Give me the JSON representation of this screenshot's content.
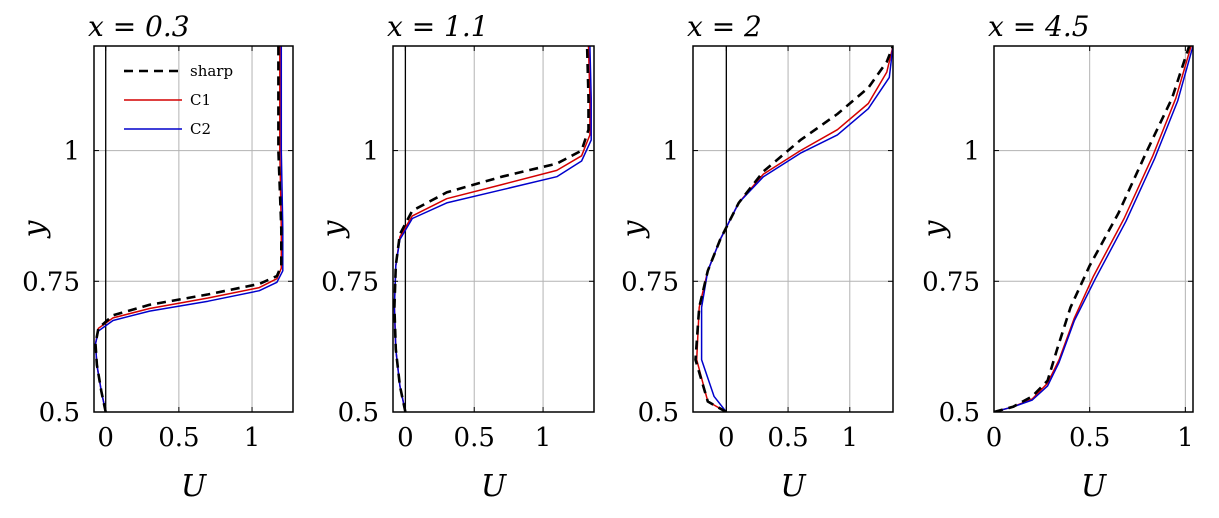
{
  "colors": {
    "sharp": "#000000",
    "C1": "#d40000",
    "C2": "#0000cc",
    "grid": "#b3b3b3"
  },
  "legend": {
    "entries": [
      {
        "label": "sharp",
        "color": "#000000",
        "dashed": true
      },
      {
        "label": "C1",
        "color": "#d40000",
        "dashed": false
      },
      {
        "label": "C2",
        "color": "#0000cc",
        "dashed": false
      }
    ],
    "placement": "top-left of first panel"
  },
  "chart_data": [
    {
      "type": "line",
      "title": "x = 0.3",
      "xlabel": "U",
      "ylabel": "y",
      "xlim": [
        -0.08,
        1.28
      ],
      "ylim": [
        0.5,
        1.2
      ],
      "xticks": [
        0,
        0.5,
        1
      ],
      "xticklabels": [
        "0",
        "0.5",
        "1"
      ],
      "yticks": [
        0.5,
        0.75,
        1
      ],
      "yticklabels": [
        "0.5",
        "0.75",
        "1"
      ],
      "grid": true,
      "legend": true,
      "series": [
        {
          "name": "sharp",
          "dashed": true,
          "color": "#000000",
          "x": [
            0,
            -0.03,
            -0.06,
            -0.07,
            -0.05,
            0.05,
            0.3,
            0.7,
            1.05,
            1.17,
            1.2,
            1.2,
            1.18,
            1.18
          ],
          "y": [
            0.5,
            0.54,
            0.59,
            0.63,
            0.66,
            0.685,
            0.705,
            0.725,
            0.745,
            0.76,
            0.78,
            0.85,
            1.0,
            1.2
          ]
        },
        {
          "name": "C1",
          "dashed": false,
          "color": "#d40000",
          "x": [
            0,
            -0.03,
            -0.06,
            -0.07,
            -0.05,
            0.05,
            0.3,
            0.7,
            1.05,
            1.17,
            1.2,
            1.2,
            1.19,
            1.19
          ],
          "y": [
            0.5,
            0.54,
            0.59,
            0.63,
            0.66,
            0.68,
            0.698,
            0.718,
            0.738,
            0.755,
            0.775,
            0.85,
            1.0,
            1.2
          ]
        },
        {
          "name": "C2",
          "dashed": false,
          "color": "#0000cc",
          "x": [
            0,
            -0.03,
            -0.06,
            -0.07,
            -0.05,
            0.05,
            0.3,
            0.7,
            1.05,
            1.17,
            1.21,
            1.21,
            1.2,
            1.2
          ],
          "y": [
            0.5,
            0.54,
            0.59,
            0.63,
            0.655,
            0.675,
            0.693,
            0.712,
            0.732,
            0.748,
            0.77,
            0.85,
            1.0,
            1.2
          ]
        }
      ]
    },
    {
      "type": "line",
      "title": "x = 1.1",
      "xlabel": "U",
      "ylabel": "y",
      "xlim": [
        -0.09,
        1.37
      ],
      "ylim": [
        0.5,
        1.2
      ],
      "xticks": [
        0,
        0.5,
        1
      ],
      "xticklabels": [
        "0",
        "0.5",
        "1"
      ],
      "yticks": [
        0.5,
        0.75,
        1
      ],
      "yticklabels": [
        "0.5",
        "0.75",
        "1"
      ],
      "grid": true,
      "legend": false,
      "series": [
        {
          "name": "sharp",
          "dashed": true,
          "color": "#000000",
          "x": [
            0,
            -0.04,
            -0.07,
            -0.08,
            -0.07,
            -0.04,
            0.05,
            0.3,
            0.7,
            1.1,
            1.28,
            1.33,
            1.33,
            1.32
          ],
          "y": [
            0.5,
            0.55,
            0.62,
            0.7,
            0.78,
            0.84,
            0.885,
            0.92,
            0.95,
            0.975,
            1.0,
            1.04,
            1.1,
            1.2
          ]
        },
        {
          "name": "C1",
          "dashed": false,
          "color": "#d40000",
          "x": [
            0,
            -0.04,
            -0.07,
            -0.08,
            -0.07,
            -0.04,
            0.05,
            0.3,
            0.7,
            1.1,
            1.28,
            1.34,
            1.34,
            1.33
          ],
          "y": [
            0.5,
            0.55,
            0.62,
            0.7,
            0.78,
            0.835,
            0.875,
            0.908,
            0.935,
            0.962,
            0.99,
            1.03,
            1.1,
            1.2
          ]
        },
        {
          "name": "C2",
          "dashed": false,
          "color": "#0000cc",
          "x": [
            0,
            -0.04,
            -0.07,
            -0.08,
            -0.07,
            -0.04,
            0.05,
            0.3,
            0.7,
            1.1,
            1.28,
            1.35,
            1.35,
            1.34
          ],
          "y": [
            0.5,
            0.55,
            0.62,
            0.7,
            0.78,
            0.83,
            0.87,
            0.9,
            0.925,
            0.95,
            0.98,
            1.02,
            1.1,
            1.2
          ]
        }
      ]
    },
    {
      "type": "line",
      "title": "x = 2",
      "xlabel": "U",
      "ylabel": "y",
      "xlim": [
        -0.27,
        1.35
      ],
      "ylim": [
        0.5,
        1.2
      ],
      "xticks": [
        0,
        0.5,
        1
      ],
      "xticklabels": [
        "0",
        "0.5",
        "1"
      ],
      "yticks": [
        0.5,
        0.75,
        1
      ],
      "yticklabels": [
        "0.5",
        "0.75",
        "1"
      ],
      "grid": true,
      "legend": false,
      "series": [
        {
          "name": "sharp",
          "dashed": true,
          "color": "#000000",
          "x": [
            0,
            -0.15,
            -0.25,
            -0.22,
            -0.15,
            -0.05,
            0.1,
            0.3,
            0.6,
            0.9,
            1.15,
            1.3,
            1.35
          ],
          "y": [
            0.5,
            0.52,
            0.6,
            0.7,
            0.77,
            0.83,
            0.9,
            0.96,
            1.02,
            1.07,
            1.12,
            1.17,
            1.2
          ]
        },
        {
          "name": "C1",
          "dashed": false,
          "color": "#d40000",
          "x": [
            0,
            -0.15,
            -0.24,
            -0.22,
            -0.15,
            -0.05,
            0.1,
            0.3,
            0.6,
            0.9,
            1.15,
            1.3,
            1.35
          ],
          "y": [
            0.5,
            0.52,
            0.6,
            0.7,
            0.77,
            0.83,
            0.9,
            0.955,
            1.0,
            1.04,
            1.09,
            1.15,
            1.2
          ]
        },
        {
          "name": "C2",
          "dashed": false,
          "color": "#0000cc",
          "x": [
            0,
            -0.1,
            -0.2,
            -0.2,
            -0.15,
            -0.05,
            0.1,
            0.3,
            0.6,
            0.9,
            1.15,
            1.32,
            1.35
          ],
          "y": [
            0.5,
            0.53,
            0.6,
            0.7,
            0.77,
            0.83,
            0.9,
            0.95,
            0.995,
            1.03,
            1.08,
            1.14,
            1.2
          ]
        }
      ]
    },
    {
      "type": "line",
      "title": "x = 4.5",
      "xlabel": "U",
      "ylabel": "y",
      "xlim": [
        0,
        1.04
      ],
      "ylim": [
        0.5,
        1.2
      ],
      "xticks": [
        0,
        0.5,
        1
      ],
      "xticklabels": [
        "0",
        "0.5",
        "1"
      ],
      "yticks": [
        0.5,
        0.75,
        1
      ],
      "yticklabels": [
        "0.5",
        "0.75",
        "1"
      ],
      "grid": true,
      "legend": false,
      "series": [
        {
          "name": "sharp",
          "dashed": true,
          "color": "#000000",
          "x": [
            0,
            0.1,
            0.2,
            0.28,
            0.33,
            0.4,
            0.5,
            0.65,
            0.8,
            0.93,
            1.02
          ],
          "y": [
            0.5,
            0.51,
            0.53,
            0.56,
            0.62,
            0.7,
            0.78,
            0.88,
            1.0,
            1.1,
            1.2
          ]
        },
        {
          "name": "C1",
          "dashed": false,
          "color": "#d40000",
          "x": [
            0,
            0.1,
            0.2,
            0.28,
            0.34,
            0.42,
            0.52,
            0.68,
            0.83,
            0.95,
            1.03
          ],
          "y": [
            0.5,
            0.51,
            0.525,
            0.555,
            0.6,
            0.68,
            0.76,
            0.87,
            0.99,
            1.1,
            1.2
          ]
        },
        {
          "name": "C2",
          "dashed": false,
          "color": "#0000cc",
          "x": [
            0,
            0.1,
            0.2,
            0.28,
            0.34,
            0.42,
            0.53,
            0.69,
            0.84,
            0.96,
            1.04
          ],
          "y": [
            0.5,
            0.51,
            0.523,
            0.55,
            0.595,
            0.675,
            0.755,
            0.865,
            0.985,
            1.095,
            1.2
          ]
        }
      ]
    }
  ]
}
